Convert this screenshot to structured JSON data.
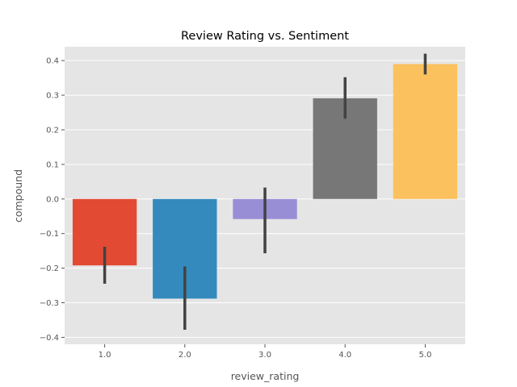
{
  "chart_data": {
    "type": "bar",
    "title": "Review Rating vs. Sentiment",
    "xlabel": "review_rating",
    "ylabel": "compound",
    "categories": [
      "1.0",
      "2.0",
      "3.0",
      "4.0",
      "5.0"
    ],
    "values": [
      -0.192,
      -0.288,
      -0.058,
      0.291,
      0.39
    ],
    "error_low": [
      -0.245,
      -0.378,
      -0.157,
      0.232,
      0.36
    ],
    "error_high": [
      -0.138,
      -0.195,
      0.033,
      0.352,
      0.42
    ],
    "colors": [
      "#E24A33",
      "#348ABD",
      "#988ED5",
      "#777777",
      "#FBC15E"
    ],
    "ylim": [
      -0.42,
      0.44
    ],
    "yticks": [
      -0.4,
      -0.3,
      -0.2,
      -0.1,
      0.0,
      0.1,
      0.2,
      0.3,
      0.4
    ],
    "ytick_labels": [
      "−0.4",
      "−0.3",
      "−0.2",
      "−0.1",
      "0.0",
      "0.1",
      "0.2",
      "0.3",
      "0.4"
    ],
    "grid": true,
    "plot_background": "#E5E5E5",
    "grid_color": "#FFFFFF",
    "errorbar_color": "#424242"
  }
}
